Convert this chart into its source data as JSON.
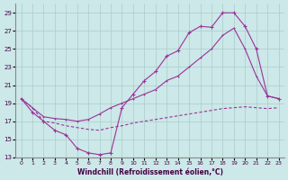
{
  "xlabel": "Windchill (Refroidissement éolien,°C)",
  "background_color": "#cce8e8",
  "grid_color": "#aacccc",
  "line_color": "#993399",
  "xlim": [
    -0.5,
    23.5
  ],
  "ylim": [
    13,
    30
  ],
  "xticks": [
    0,
    1,
    2,
    3,
    4,
    5,
    6,
    7,
    8,
    9,
    10,
    11,
    12,
    13,
    14,
    15,
    16,
    17,
    18,
    19,
    20,
    21,
    22,
    23
  ],
  "yticks": [
    13,
    15,
    17,
    19,
    21,
    23,
    25,
    27,
    29
  ],
  "curve1_x": [
    0,
    1,
    2,
    3,
    4,
    5,
    6,
    7,
    8,
    9,
    10,
    11,
    12,
    13,
    14,
    15,
    16,
    17,
    18,
    19,
    20,
    21,
    22,
    23
  ],
  "curve1_y": [
    19.5,
    18.0,
    17.0,
    16.0,
    15.5,
    14.0,
    13.5,
    13.3,
    13.5,
    18.5,
    20.0,
    21.5,
    22.5,
    24.2,
    24.8,
    26.8,
    27.5,
    27.4,
    29.0,
    29.0,
    27.5,
    25.0,
    19.8,
    19.5
  ],
  "curve2_x": [
    0,
    1,
    2,
    3,
    4,
    5,
    6,
    7,
    8,
    9,
    10,
    11,
    12,
    13,
    14,
    15,
    16,
    17,
    18,
    19,
    20,
    21,
    22,
    23
  ],
  "curve2_y": [
    19.5,
    18.5,
    17.0,
    16.8,
    16.5,
    16.3,
    16.1,
    16.0,
    16.3,
    16.5,
    16.8,
    17.0,
    17.2,
    17.4,
    17.6,
    17.8,
    18.0,
    18.2,
    18.4,
    18.5,
    18.6,
    18.5,
    18.4,
    18.5
  ],
  "curve3_x": [
    0,
    1,
    2,
    3,
    4,
    5,
    6,
    7,
    8,
    9,
    10,
    11,
    12,
    13,
    14,
    15,
    16,
    17,
    18,
    19,
    20,
    21,
    22,
    23
  ],
  "curve3_y": [
    19.5,
    18.5,
    17.5,
    17.3,
    17.2,
    17.0,
    17.2,
    17.8,
    18.5,
    19.0,
    19.5,
    20.0,
    20.5,
    21.5,
    22.0,
    23.0,
    24.0,
    25.0,
    26.5,
    27.3,
    25.0,
    22.0,
    19.8,
    19.5
  ]
}
